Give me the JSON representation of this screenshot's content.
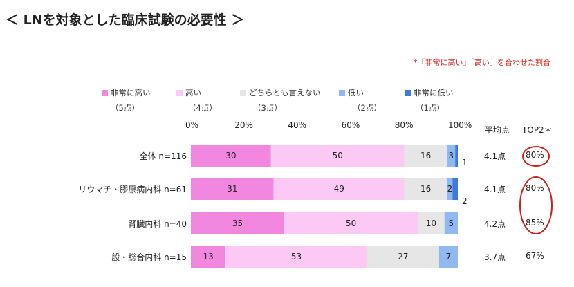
{
  "title": "＜ LNを対象とした臨床試験の必要性 ＞",
  "note": "*「非常に高い」「高い」を合わせた割合",
  "colors": {
    "very_high": "#f287e0",
    "high": "#fcc9f5",
    "neutral": "#e6e6e6",
    "low": "#8fb9f0",
    "very_low": "#3f79dd",
    "note_red": "#d9241c",
    "circle_red": "#cc1f1f"
  },
  "legend": [
    {
      "key": "very_high",
      "label": "非常に高い",
      "points": "（5点）"
    },
    {
      "key": "high",
      "label": "高い",
      "points": "（4点）"
    },
    {
      "key": "neutral",
      "label": "どちらとも言えない",
      "points": "（3点）"
    },
    {
      "key": "low",
      "label": "低い",
      "points": "（2点）"
    },
    {
      "key": "very_low",
      "label": "非常に低い",
      "points": "（1点）"
    }
  ],
  "headers": {
    "avg": "平均点",
    "top2": "TOP2＊"
  },
  "chart_data": {
    "type": "bar",
    "orientation": "horizontal-stacked-100",
    "categories": [
      "全体 n=116",
      "リウマチ・膠原病内科 n=61",
      "腎臓内科 n=40",
      "一般・総合内科 n=15"
    ],
    "x_ticks": [
      "0%",
      "20%",
      "40%",
      "60%",
      "80%",
      "100%"
    ],
    "xlim": [
      0,
      100
    ],
    "series": [
      {
        "name": "非常に高い",
        "key": "very_high",
        "values": [
          30,
          31,
          35,
          13
        ],
        "labels": [
          "30",
          "31",
          "35",
          "13"
        ]
      },
      {
        "name": "高い",
        "key": "high",
        "values": [
          50,
          49,
          50,
          53
        ],
        "labels": [
          "50",
          "49",
          "50",
          "53"
        ]
      },
      {
        "name": "どちらとも言えない",
        "key": "neutral",
        "values": [
          16,
          16,
          10,
          27
        ],
        "labels": [
          "16",
          "16",
          "10",
          "27"
        ]
      },
      {
        "name": "低い",
        "key": "low",
        "values": [
          3,
          2,
          5,
          7
        ],
        "labels": [
          "3",
          "2",
          "5",
          "7"
        ]
      },
      {
        "name": "非常に低い",
        "key": "very_low",
        "values": [
          1,
          2,
          0,
          0
        ],
        "labels": [
          "1",
          "2",
          "",
          ""
        ]
      }
    ],
    "averages": [
      "4.1点",
      "4.1点",
      "4.2点",
      "3.7点"
    ],
    "top2": [
      "80%",
      "80%",
      "85%",
      "67%"
    ],
    "circled_top2_rows": [
      0,
      1,
      2
    ]
  }
}
